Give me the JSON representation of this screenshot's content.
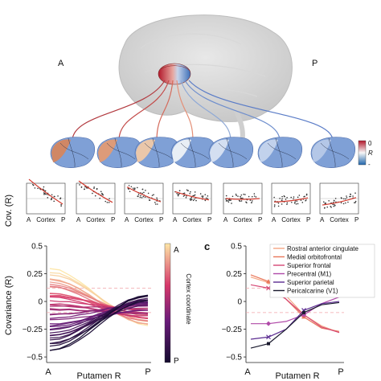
{
  "figure": {
    "panel_letters": {
      "a": "A",
      "p": "P",
      "c": "c"
    },
    "scatter_ylabel": "Cov. (R)",
    "scatter_xlabel": "Cortex",
    "scatter_xend": [
      "A",
      "P"
    ],
    "colorbar_top": {
      "max": "0",
      "mid": "R",
      "min": "-"
    }
  },
  "colors": {
    "gradient_purple": "#1c0d3c",
    "gradient_magenta": "#b7246f",
    "gradient_yellow": "#fce49b",
    "brain_blue": "#5a86cf",
    "brain_red": "#c0393f",
    "fit_red": "#d23a2e"
  },
  "scatter_panels": [
    {
      "slope": -1.5,
      "intercept": 0.25
    },
    {
      "slope": -1.3,
      "intercept": 0.25
    },
    {
      "slope": -0.9,
      "intercept": 0.15
    },
    {
      "slope": -0.5,
      "intercept": 0.1
    },
    {
      "slope": 0.0,
      "intercept": 0.0
    },
    {
      "slope": 0.25,
      "intercept": -0.05
    },
    {
      "slope": 0.45,
      "intercept": -0.1
    }
  ],
  "chart_data": [
    {
      "type": "line",
      "panel": "b",
      "ylabel": "Covariance (R)",
      "xlabel": "Putamen R",
      "x_ticklabels": [
        "A",
        "P"
      ],
      "ylim": [
        -0.55,
        0.5
      ],
      "yticks": [
        0.5,
        0.25,
        0,
        -0.25,
        -0.5
      ],
      "ytick_labels": [
        "0.5",
        "0.25",
        "0",
        "−0.25",
        "−0.5"
      ],
      "ref_lines": [
        0.12,
        -0.1
      ],
      "colorbar_label": "Cortex coordinate",
      "colorbar_ends": [
        "A",
        "P"
      ],
      "n_lines": 40
    },
    {
      "type": "line",
      "panel": "c",
      "xlabel": "Putamen R",
      "x_ticklabels": [
        "A",
        "P"
      ],
      "ylim": [
        -0.55,
        0.5
      ],
      "yticks": [
        0.5,
        0.25,
        0,
        -0.25,
        -0.5
      ],
      "ytick_labels": [
        "0.5",
        "0.25",
        "0",
        "−0.25",
        "−0.5"
      ],
      "ref_lines": [
        0.12,
        -0.1
      ],
      "x": [
        0,
        1,
        2,
        3,
        4,
        5
      ],
      "series": [
        {
          "name": "Rostral anterior cingulate",
          "color": "#f4a582",
          "marker": "circle",
          "values": [
            0.22,
            0.17,
            0.05,
            -0.12,
            -0.22,
            -0.28
          ]
        },
        {
          "name": "Medial orbitofrontal",
          "color": "#e9775b",
          "marker": "triangle",
          "values": [
            0.24,
            0.18,
            0.02,
            -0.14,
            -0.24,
            -0.27
          ]
        },
        {
          "name": "Superior frontal",
          "color": "#d64875",
          "marker": "x",
          "values": [
            0.15,
            0.12,
            0.02,
            -0.12,
            -0.23,
            -0.28
          ]
        },
        {
          "name": "Precentral (M1)",
          "color": "#b04aa8",
          "marker": "diamond",
          "values": [
            -0.2,
            -0.2,
            -0.18,
            -0.12,
            -0.02,
            0.04
          ]
        },
        {
          "name": "Superior parietal",
          "color": "#5b2c91",
          "marker": "star",
          "values": [
            -0.34,
            -0.32,
            -0.25,
            -0.08,
            -0.02,
            0.0
          ]
        },
        {
          "name": "Pericalcarine (V1)",
          "color": "#1a1a2e",
          "marker": "square",
          "values": [
            -0.42,
            -0.38,
            -0.25,
            -0.1,
            -0.03,
            -0.01
          ]
        }
      ]
    }
  ]
}
